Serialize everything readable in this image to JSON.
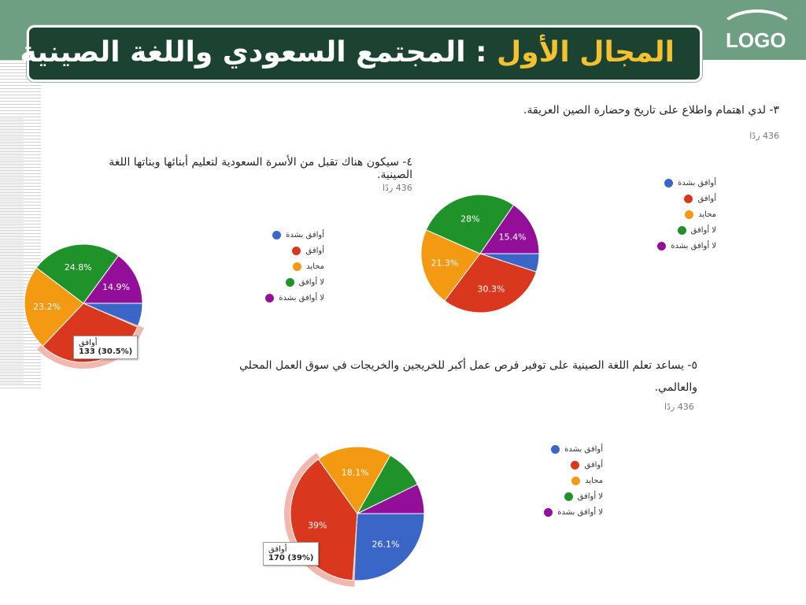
{
  "header": {
    "title_part1": "المجال الأول",
    "title_part2": ": المجتمع السعودي واللغة الصينية",
    "logo": "LOGO"
  },
  "colors": {
    "header_band": "#6e9f82",
    "title_box": "#1c4332",
    "title_accent": "#f2c230",
    "series": [
      "#3a66c8",
      "#d9381e",
      "#f39a12",
      "#20922a",
      "#930f9a"
    ]
  },
  "charts": [
    {
      "question": "٣- لدي اهتمام واطلاع على تاريخ وحضارة الصين العريقة.",
      "responses": "436 ردًا",
      "legend": [
        "أوافق بشدة",
        "أوافق",
        "محايد",
        "لا أوافق",
        "لا أوافق بشدة"
      ]
    },
    {
      "question": "٤- سيكون هناك تقبل من الأسرة السعودية لتعليم أبنائها وبناتها اللغة الصينية.",
      "responses": "436 ردًا",
      "legend": [
        "أوافق بشدة",
        "أوافق",
        "محايد",
        "لا أوافق",
        "لا أوافق بشدة"
      ],
      "tooltip": {
        "label": "أوافق",
        "value": "133 (30.5%)"
      }
    },
    {
      "question": "٥- يساعد تعلم اللغة الصينية على توفير فرص عمل أكبر للخريجين والخريجات في سوق العمل المحلي والعالمي.",
      "responses": "436 ردًا",
      "legend": [
        "أوافق بشدة",
        "أوافق",
        "محايد",
        "لا أوافق",
        "لا أوافق بشدة"
      ],
      "tooltip": {
        "label": "أوافق",
        "value": "170 (39%)"
      }
    }
  ],
  "chart_data": [
    {
      "type": "pie",
      "categories": [
        "أوافق بشدة",
        "أوافق",
        "محايد",
        "لا أوافق",
        "لا أوافق بشدة"
      ],
      "values": [
        5.0,
        30.3,
        21.3,
        28.0,
        15.4
      ],
      "labels": [
        "",
        "30.3%",
        "21.3%",
        "28%",
        "15.4%"
      ],
      "exploded_index": -1
    },
    {
      "type": "pie",
      "categories": [
        "أوافق بشدة",
        "أوافق",
        "محايد",
        "لا أوافق",
        "لا أوافق بشدة"
      ],
      "values": [
        6.6,
        30.5,
        23.2,
        24.8,
        14.9
      ],
      "labels": [
        "",
        "",
        "23.2%",
        "24.8%",
        "14.9%"
      ],
      "exploded_index": 1
    },
    {
      "type": "pie",
      "categories": [
        "أوافق بشدة",
        "أوافق",
        "محايد",
        "لا أوافق",
        "لا أوافق بشدة"
      ],
      "values": [
        26.1,
        39.0,
        18.1,
        9.6,
        7.2
      ],
      "labels": [
        "26.1%",
        "39%",
        "18.1%",
        "",
        ""
      ],
      "exploded_index": 1
    }
  ]
}
